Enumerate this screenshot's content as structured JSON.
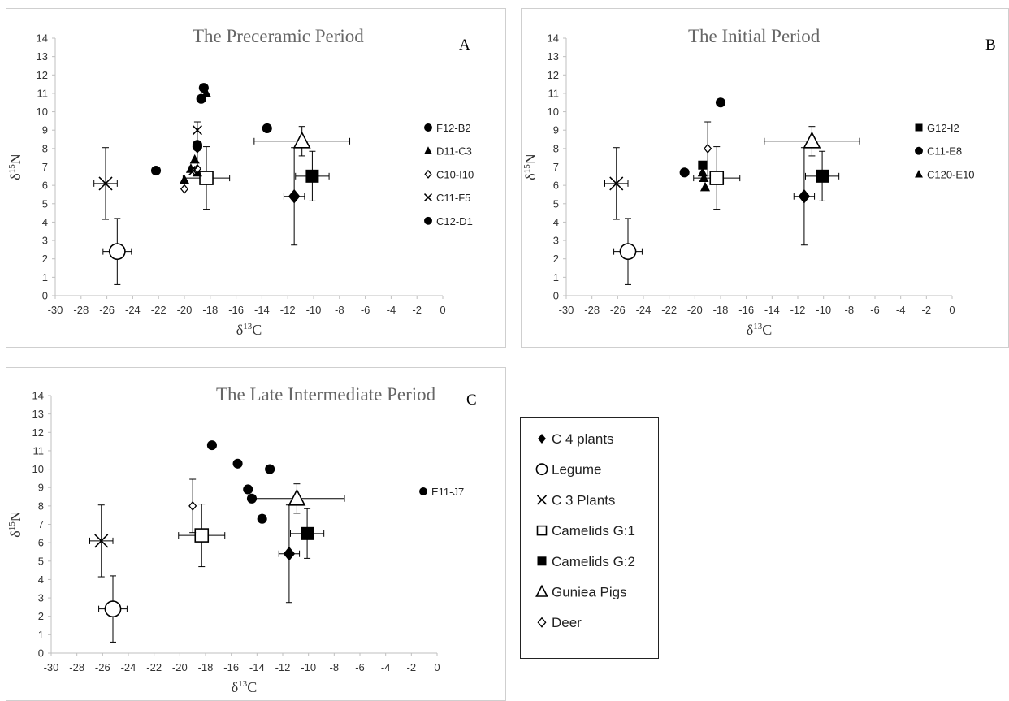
{
  "figure": {
    "ref_labels": {
      "c4": "C 4 plants",
      "legume": "Legume",
      "c3": "C 3 Plants",
      "camg1": "Camelids G:1",
      "camg2": "Camelids G:2",
      "gpig": "Guniea Pigs",
      "deer": "Deer"
    },
    "legend_order": [
      "c4",
      "legume",
      "c3",
      "camg1",
      "camg2",
      "gpig",
      "deer"
    ],
    "ref_marker": {
      "c4": "diamond-filled",
      "legume": "circle-open",
      "c3": "cross",
      "camg1": "square-open",
      "camg2": "square-filled",
      "gpig": "triangle-open",
      "deer": "diamond-open"
    }
  },
  "chart_data": [
    {
      "id": "A",
      "type": "scatter",
      "title": "The Preceramic Period",
      "panel_letter": "A",
      "xlabel": "δ13C",
      "ylabel": "δ15N",
      "xlim": [
        -30,
        0
      ],
      "ylim": [
        0,
        14
      ],
      "xticks": [
        -30,
        -28,
        -26,
        -24,
        -22,
        -20,
        -18,
        -16,
        -14,
        -12,
        -10,
        -8,
        -6,
        -4,
        -2,
        0
      ],
      "yticks": [
        0,
        1,
        2,
        3,
        4,
        5,
        6,
        7,
        8,
        9,
        10,
        11,
        12,
        13,
        14
      ],
      "legend_position": "right",
      "reference_points": [
        {
          "key": "c4",
          "x": -11.5,
          "y": 5.4,
          "xerr": 0.8,
          "yerr": 2.65
        },
        {
          "key": "legume",
          "x": -25.2,
          "y": 2.4,
          "xerr": 1.1,
          "yerr": 1.8
        },
        {
          "key": "c3",
          "x": -26.1,
          "y": 6.1,
          "xerr": 0.9,
          "yerr": 1.95
        },
        {
          "key": "camg1",
          "x": -18.3,
          "y": 6.4,
          "xerr": 1.8,
          "yerr": 1.7
        },
        {
          "key": "camg2",
          "x": -10.1,
          "y": 6.5,
          "xerr": 1.3,
          "yerr": 1.35
        },
        {
          "key": "gpig",
          "x": -10.9,
          "y": 8.4,
          "xerr": 3.7,
          "yerr": 0.8
        },
        {
          "key": "deer",
          "x": -19.0,
          "y": 8.0,
          "xerr": 0.0,
          "yerr": 1.45
        }
      ],
      "series": [
        {
          "name": "F12-B2",
          "marker": "circle-filled",
          "points": [
            [
              -22.2,
              6.8
            ],
            [
              -13.6,
              9.1
            ]
          ]
        },
        {
          "name": "D11-C3",
          "marker": "triangle-filled",
          "points": [
            [
              -20.0,
              6.3
            ],
            [
              -19.5,
              6.9
            ],
            [
              -19.2,
              7.4
            ],
            [
              -18.3,
              11.0
            ],
            [
              -19.0,
              6.7
            ]
          ]
        },
        {
          "name": "C10-I10",
          "marker": "diamond-open",
          "points": [
            [
              -20.0,
              5.8
            ],
            [
              -19.2,
              6.8
            ],
            [
              -19.0,
              6.9
            ]
          ]
        },
        {
          "name": "C11-F5",
          "marker": "cross",
          "points": [
            [
              -19.0,
              9.0
            ],
            [
              -19.3,
              6.8
            ]
          ]
        },
        {
          "name": "C12-D1",
          "marker": "circle-filled",
          "points": [
            [
              -19.0,
              8.1
            ],
            [
              -19.0,
              8.2
            ],
            [
              -18.7,
              10.7
            ],
            [
              -18.5,
              11.3
            ]
          ]
        }
      ]
    },
    {
      "id": "B",
      "type": "scatter",
      "title": "The Initial Period",
      "panel_letter": "B",
      "xlabel": "δ13C",
      "ylabel": "δ15N",
      "xlim": [
        -30,
        0
      ],
      "ylim": [
        0,
        14
      ],
      "xticks": [
        -30,
        -28,
        -26,
        -24,
        -22,
        -20,
        -18,
        -16,
        -14,
        -12,
        -10,
        -8,
        -6,
        -4,
        -2,
        0
      ],
      "yticks": [
        0,
        1,
        2,
        3,
        4,
        5,
        6,
        7,
        8,
        9,
        10,
        11,
        12,
        13,
        14
      ],
      "legend_position": "right",
      "reference_points": [
        {
          "key": "c4",
          "x": -11.5,
          "y": 5.4,
          "xerr": 0.8,
          "yerr": 2.65
        },
        {
          "key": "legume",
          "x": -25.2,
          "y": 2.4,
          "xerr": 1.1,
          "yerr": 1.8
        },
        {
          "key": "c3",
          "x": -26.1,
          "y": 6.1,
          "xerr": 0.9,
          "yerr": 1.95
        },
        {
          "key": "camg1",
          "x": -18.3,
          "y": 6.4,
          "xerr": 1.8,
          "yerr": 1.7
        },
        {
          "key": "camg2",
          "x": -10.1,
          "y": 6.5,
          "xerr": 1.3,
          "yerr": 1.35
        },
        {
          "key": "gpig",
          "x": -10.9,
          "y": 8.4,
          "xerr": 3.7,
          "yerr": 0.8
        },
        {
          "key": "deer",
          "x": -19.0,
          "y": 8.0,
          "xerr": 0.0,
          "yerr": 1.45
        }
      ],
      "series": [
        {
          "name": "G12-I2",
          "marker": "square-filled",
          "points": [
            [
              -19.4,
              7.1
            ]
          ]
        },
        {
          "name": "C11-E8",
          "marker": "circle-filled",
          "points": [
            [
              -20.8,
              6.7
            ],
            [
              -18.0,
              10.5
            ]
          ]
        },
        {
          "name": "C120-E10",
          "marker": "triangle-filled",
          "points": [
            [
              -19.4,
              6.7
            ],
            [
              -19.3,
              6.4
            ],
            [
              -19.2,
              5.9
            ]
          ]
        }
      ]
    },
    {
      "id": "C",
      "type": "scatter",
      "title": "The Late Intermediate Period",
      "panel_letter": "C",
      "xlabel": "δ13C",
      "ylabel": "δ15N",
      "xlim": [
        -30,
        0
      ],
      "ylim": [
        0,
        14
      ],
      "xticks": [
        -30,
        -28,
        -26,
        -24,
        -22,
        -20,
        -18,
        -16,
        -14,
        -12,
        -10,
        -8,
        -6,
        -4,
        -2,
        0
      ],
      "yticks": [
        0,
        1,
        2,
        3,
        4,
        5,
        6,
        7,
        8,
        9,
        10,
        11,
        12,
        13,
        14
      ],
      "legend_position": "right",
      "reference_points": [
        {
          "key": "c4",
          "x": -11.5,
          "y": 5.4,
          "xerr": 0.8,
          "yerr": 2.65
        },
        {
          "key": "legume",
          "x": -25.2,
          "y": 2.4,
          "xerr": 1.1,
          "yerr": 1.8
        },
        {
          "key": "c3",
          "x": -26.1,
          "y": 6.1,
          "xerr": 0.9,
          "yerr": 1.95
        },
        {
          "key": "camg1",
          "x": -18.3,
          "y": 6.4,
          "xerr": 1.8,
          "yerr": 1.7
        },
        {
          "key": "camg2",
          "x": -10.1,
          "y": 6.5,
          "xerr": 1.3,
          "yerr": 1.35
        },
        {
          "key": "gpig",
          "x": -10.9,
          "y": 8.4,
          "xerr": 3.7,
          "yerr": 0.8
        },
        {
          "key": "deer",
          "x": -19.0,
          "y": 8.0,
          "xerr": 0.0,
          "yerr": 1.45
        }
      ],
      "series": [
        {
          "name": "E11-J7",
          "marker": "circle-filled",
          "points": [
            [
              -17.5,
              11.3
            ],
            [
              -15.5,
              10.3
            ],
            [
              -13.0,
              10.0
            ],
            [
              -14.7,
              8.9
            ],
            [
              -14.4,
              8.4
            ],
            [
              -13.6,
              7.3
            ]
          ]
        }
      ]
    }
  ]
}
